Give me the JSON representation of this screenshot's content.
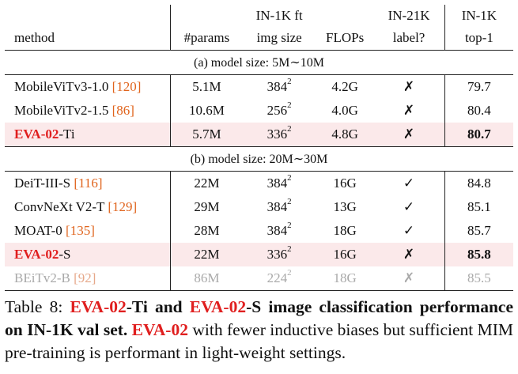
{
  "header": {
    "row1": [
      "",
      "",
      "IN-1K ft",
      "",
      "IN-21K",
      "IN-1K"
    ],
    "row2": [
      "method",
      "#params",
      "img size",
      "FLOPs",
      "label?",
      "top-1"
    ]
  },
  "sections": [
    {
      "title": "(a) model size: 5M∼10M",
      "rows": [
        {
          "method": "MobileViTv3-1.0",
          "cite": "[120]",
          "params": "5.1M",
          "img": "384",
          "flops": "4.2G",
          "label": "✗",
          "top1": "79.7",
          "style": "normal"
        },
        {
          "method": "MobileViTv2-1.5",
          "cite": "[86]",
          "params": "10.6M",
          "img": "256",
          "flops": "4.0G",
          "label": "✗",
          "top1": "80.4",
          "style": "normal"
        },
        {
          "method_red": "EVA-02",
          "method_rest": "-Ti",
          "params": "5.7M",
          "img": "336",
          "flops": "4.8G",
          "label": "✗",
          "top1": "80.7",
          "style": "highlight"
        }
      ]
    },
    {
      "title": "(b) model size: 20M∼30M",
      "rows": [
        {
          "method": "DeiT-III-S",
          "cite": "[116]",
          "params": "22M",
          "img": "384",
          "flops": "16G",
          "label": "✓",
          "top1": "84.8",
          "style": "normal"
        },
        {
          "method": "ConvNeXt V2-T",
          "cite": "[129]",
          "params": "29M",
          "img": "384",
          "flops": "13G",
          "label": "✓",
          "top1": "85.1",
          "style": "normal"
        },
        {
          "method": "MOAT-0",
          "cite": "[135]",
          "params": "28M",
          "img": "384",
          "flops": "18G",
          "label": "✓",
          "top1": "85.7",
          "style": "normal"
        },
        {
          "method_red": "EVA-02",
          "method_rest": "-S",
          "params": "22M",
          "img": "336",
          "flops": "16G",
          "label": "✗",
          "top1": "85.8",
          "style": "highlight"
        },
        {
          "method": "BEiTv2-B",
          "cite": "[92]",
          "params": "86M",
          "img": "224",
          "flops": "18G",
          "label": "✗",
          "top1": "85.5",
          "style": "gray"
        }
      ]
    }
  ],
  "superscript": "2",
  "caption": {
    "prefix": "Table 8: ",
    "eva1": "EVA-02",
    "t1": "-Ti and ",
    "eva2": "EVA-02",
    "t2": "-S image classification performance on IN-1K val set. ",
    "eva3": "EVA-02",
    "t3": " with fewer inductive biases but sufficient MIM pre-training is performant in light-weight settings."
  }
}
